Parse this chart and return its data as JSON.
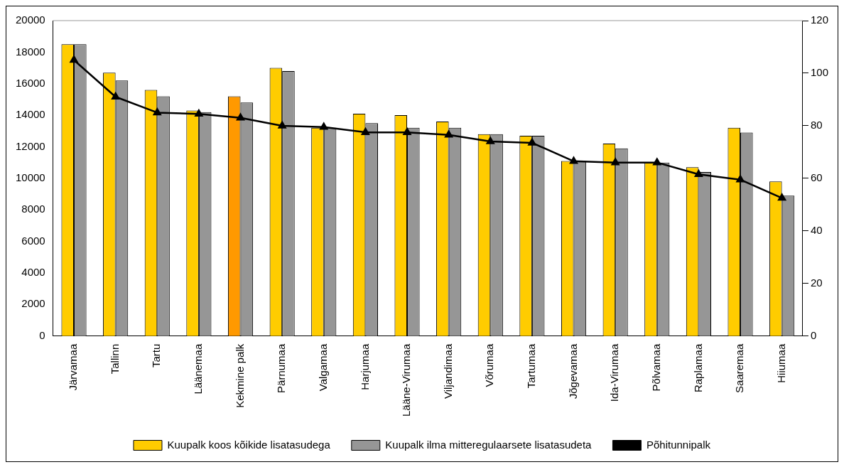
{
  "chart_data": {
    "type": "bar",
    "categories": [
      "Järvamaa",
      "Tallinn",
      "Tartu",
      "Läänemaa",
      "Kekmine palk",
      "Pärnumaa",
      "Valgamaa",
      "Harjumaa",
      "Lääne-Virumaa",
      "Viljandimaa",
      "Võrumaa",
      "Tartumaa",
      "Jõgevamaa",
      "Ida-Virumaa",
      "Põlvamaa",
      "Raplamaa",
      "Saaremaa",
      "Hiiumaa"
    ],
    "series": [
      {
        "name": "Kuupalk koos kõikide lisatasudega",
        "color": "#ffcc00",
        "colors": [
          "#ffcc00",
          "#ffcc00",
          "#ffcc00",
          "#ffcc00",
          "#ff9900",
          "#ffcc00",
          "#ffcc00",
          "#ffcc00",
          "#ffcc00",
          "#ffcc00",
          "#ffcc00",
          "#ffcc00",
          "#ffcc00",
          "#ffcc00",
          "#ffcc00",
          "#ffcc00",
          "#ffcc00",
          "#ffcc00"
        ],
        "values": [
          18500,
          16700,
          15600,
          14300,
          15200,
          17000,
          13200,
          14100,
          14000,
          13600,
          12800,
          12700,
          11100,
          12200,
          11000,
          10700,
          13200,
          9800
        ]
      },
      {
        "name": "Kuupalk ilma mitteregulaarsete lisatasudeta",
        "color": "#969696",
        "values": [
          18500,
          16200,
          15200,
          14200,
          14800,
          16800,
          13200,
          13500,
          13200,
          13200,
          12800,
          12700,
          11100,
          11900,
          11000,
          10400,
          12900,
          8900
        ]
      },
      {
        "name": "Põhitunnipalk",
        "type": "line",
        "axis": "y2",
        "color": "#000000",
        "marker": "triangle",
        "values": [
          105,
          91,
          85,
          84.5,
          83,
          80,
          79.5,
          77.5,
          77.5,
          76.5,
          74,
          73.5,
          66.5,
          66,
          66,
          61.5,
          59.5,
          52.5
        ]
      }
    ],
    "ylim": [
      0,
      20000
    ],
    "yticks": [
      0,
      2000,
      4000,
      6000,
      8000,
      10000,
      12000,
      14000,
      16000,
      18000,
      20000
    ],
    "y2lim": [
      0,
      120
    ],
    "y2ticks": [
      0,
      20,
      40,
      60,
      80,
      100,
      120
    ],
    "grid": false,
    "legend": "bottom"
  }
}
